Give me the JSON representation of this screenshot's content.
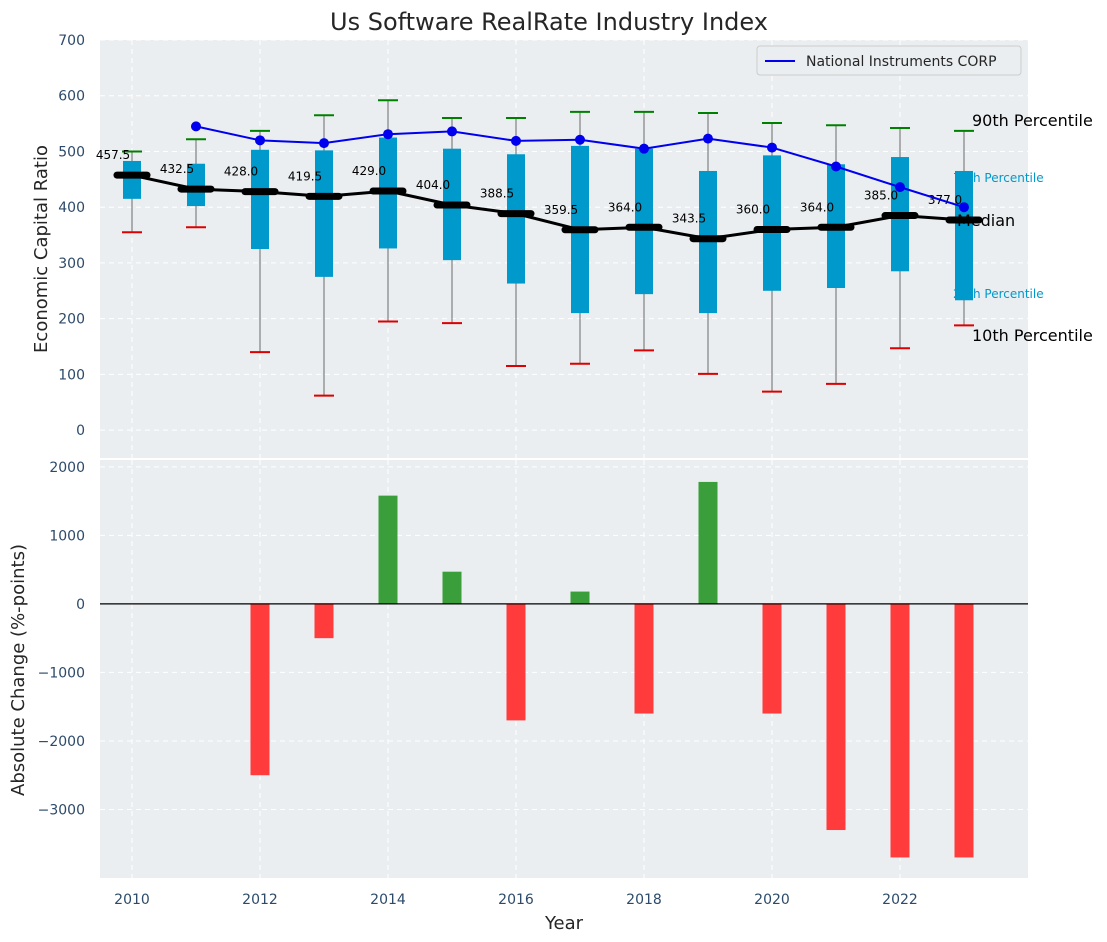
{
  "chart_data": [
    {
      "type": "box",
      "title": "Us Software RealRate Industry Index",
      "xlabel": "",
      "ylabel": "Economic Capital Ratio",
      "ylim": [
        -50,
        700
      ],
      "yticks": [
        0,
        100,
        200,
        300,
        400,
        500,
        600,
        700
      ],
      "grid": true,
      "colors": {
        "box": "#0099cc",
        "median": "#000000",
        "whisker": "#808080",
        "cap_high": "#008000",
        "cap_low": "#dd0000",
        "company": "#0000ee",
        "panel_bg": "#eaeef0"
      },
      "years": [
        2010,
        2011,
        2012,
        2013,
        2014,
        2015,
        2016,
        2017,
        2018,
        2019,
        2020,
        2021,
        2022,
        2023
      ],
      "p10": [
        355,
        364,
        140,
        62,
        195,
        192,
        115,
        119,
        143,
        101,
        69,
        83,
        147,
        188
      ],
      "p25": [
        415,
        402,
        325,
        275,
        326,
        305,
        263,
        210,
        244,
        210,
        250,
        255,
        285,
        233
      ],
      "median": [
        457.5,
        432.5,
        428.0,
        419.5,
        429.0,
        404.0,
        388.5,
        359.5,
        364.0,
        343.5,
        360.0,
        364.0,
        385.0,
        377.0
      ],
      "median_labels": [
        "457.5",
        "432.5",
        "428.0",
        "419.5",
        "429.0",
        "404.0",
        "388.5",
        "359.5",
        "364.0",
        "343.5",
        "360.0",
        "364.0",
        "385.0",
        "377.0"
      ],
      "p75": [
        483,
        478,
        503,
        502,
        525,
        505,
        495,
        510,
        505,
        465,
        493,
        477,
        490,
        465
      ],
      "p90": [
        500,
        522,
        537,
        565,
        592,
        560,
        560,
        571,
        571,
        569,
        551,
        547,
        542,
        537
      ],
      "company": {
        "name": "National Instruments CORP",
        "years": [
          2011,
          2012,
          2013,
          2014,
          2015,
          2016,
          2017,
          2018,
          2019,
          2020,
          2021,
          2022,
          2023
        ],
        "values": [
          545,
          520,
          515,
          531,
          536,
          519,
          521,
          505,
          523,
          507,
          473,
          436,
          400
        ]
      },
      "annotations": {
        "p90": "90th Percentile",
        "p75": "75th Percentile",
        "median": "Median",
        "p25": "25th Percentile",
        "p10": "10th Percentile"
      },
      "legend": {
        "position": "upper-right",
        "entries": [
          "National Instruments CORP"
        ]
      }
    },
    {
      "type": "bar",
      "xlabel": "Year",
      "ylabel": "Absolute Change (%-points)",
      "ylim": [
        -4000,
        2100
      ],
      "yticks": [
        -3000,
        -2000,
        -1000,
        0,
        1000,
        2000
      ],
      "ytick_labels": [
        "−3000",
        "−2000",
        "−1000",
        "0",
        "1000",
        "2000"
      ],
      "xticks": [
        2010,
        2012,
        2014,
        2016,
        2018,
        2020,
        2022
      ],
      "xlim": [
        2009.5,
        2024.0
      ],
      "grid": true,
      "colors": {
        "positive": "#3a9e3a",
        "negative": "#ff3b3b"
      },
      "categories": [
        2012,
        2013,
        2014,
        2015,
        2016,
        2017,
        2018,
        2019,
        2020,
        2021,
        2022,
        2023
      ],
      "values": [
        -2500,
        -500,
        1580,
        470,
        -1700,
        180,
        -1600,
        1780,
        -1600,
        -3300,
        -3700,
        -3700
      ]
    }
  ]
}
